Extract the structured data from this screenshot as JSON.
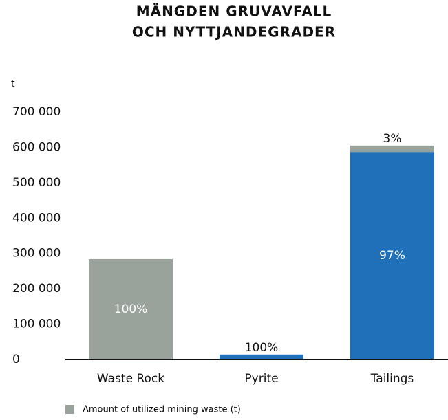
{
  "chart_data": {
    "type": "stacked_bar",
    "title": [
      "MÄNGDEN GRUVAVFALL",
      "OCH NYTTJANDEGRADER"
    ],
    "y_label": "t",
    "categories": [
      "Waste Rock",
      "Pyrite",
      "Tailings"
    ],
    "series": [
      {
        "color": "#1f6fb9",
        "values": [
          0,
          14000,
          587000
        ],
        "labels": [
          null,
          "100%",
          "97%"
        ]
      },
      {
        "name": "Amount of utilized mining waste (t)",
        "color": "#9aa39b",
        "values": [
          284000,
          0,
          18000
        ],
        "labels": [
          "100%",
          null,
          "3%"
        ]
      }
    ],
    "ylim": [
      0,
      700000
    ],
    "yticks": [
      0,
      {
        "value": 100000,
        "label": "100 000"
      },
      {
        "value": 200000,
        "label": "200 000"
      },
      {
        "value": 300000,
        "label": "300 000"
      },
      {
        "value": 400000,
        "label": "400 000"
      },
      {
        "value": 500000,
        "label": "500 000"
      },
      {
        "value": 600000,
        "label": "600 000"
      },
      {
        "value": 700000,
        "label": "700 000"
      }
    ],
    "grid": false
  }
}
